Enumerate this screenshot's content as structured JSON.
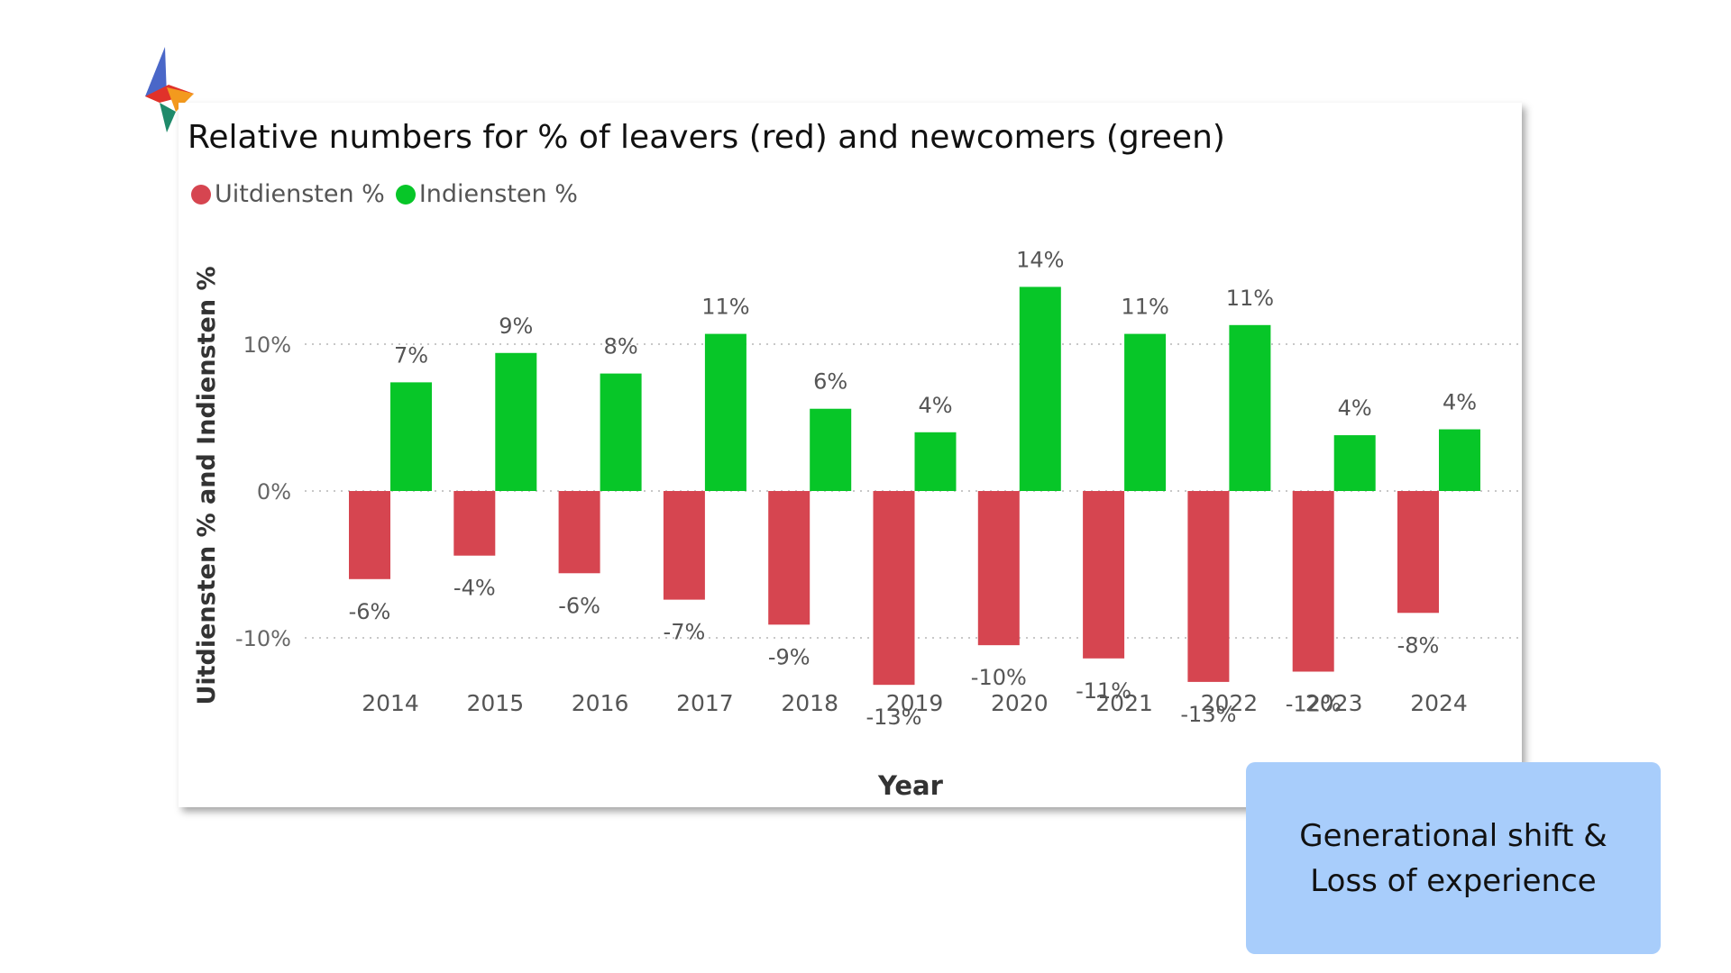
{
  "logo": {
    "name": "lightning-logo"
  },
  "colors": {
    "leavers": "#d64550",
    "newcomers": "#07c628",
    "gridline": "#c8c8c8",
    "callout_bg": "#a8cdfb"
  },
  "chart_data": {
    "type": "bar",
    "title": "Relative numbers for % of leavers (red) and newcomers (green)",
    "xlabel": "Year",
    "ylabel": "Uitdiensten % and Indiensten %",
    "ylim": [
      -15,
      17
    ],
    "yticks": [
      -10,
      0,
      10
    ],
    "ytick_labels": [
      "-10%",
      "0%",
      "10%"
    ],
    "grid": true,
    "legend_position": "top-left",
    "categories": [
      "2014",
      "2015",
      "2016",
      "2017",
      "2018",
      "2019",
      "2020",
      "2021",
      "2022",
      "2023",
      "2024"
    ],
    "series": [
      {
        "name": "Uitdiensten %",
        "values": [
          -6,
          -4.4,
          -5.6,
          -7.4,
          -9.1,
          -13.2,
          -10.5,
          -11.4,
          -13,
          -12.3,
          -8.3
        ],
        "labels": [
          "-6%",
          "-4%",
          "-6%",
          "-7%",
          "-9%",
          "-13%",
          "-10%",
          "-11%",
          "-13%",
          "-12%",
          "-8%"
        ]
      },
      {
        "name": "Indiensten %",
        "values": [
          7.4,
          9.4,
          8,
          10.7,
          5.6,
          4,
          13.9,
          10.7,
          11.3,
          3.8,
          4.2
        ],
        "labels": [
          "7%",
          "9%",
          "8%",
          "11%",
          "6%",
          "4%",
          "14%",
          "11%",
          "11%",
          "4%",
          "4%"
        ]
      }
    ]
  },
  "callout": {
    "line1": "Generational shift &",
    "line2": "Loss of experience"
  }
}
